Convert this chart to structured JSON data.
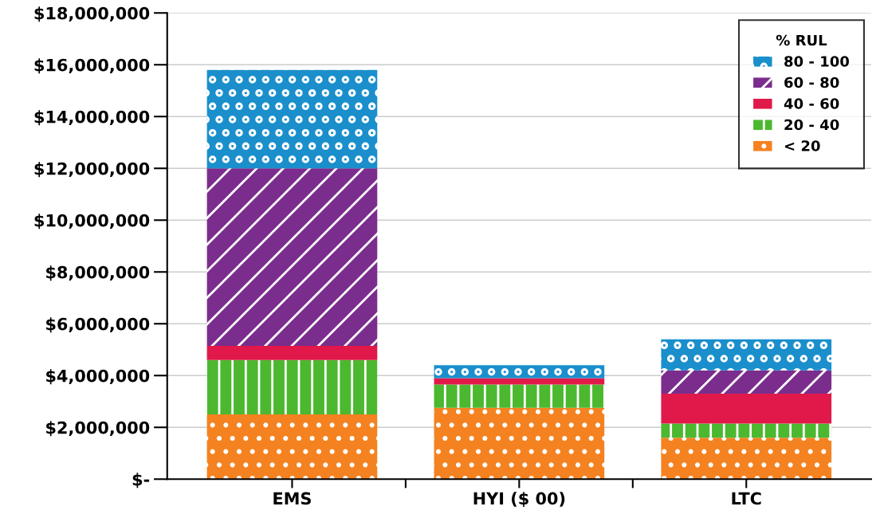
{
  "chart_data": {
    "type": "bar",
    "stacked": true,
    "categories": [
      "EMS",
      "HYI ($ 00)",
      "LTC"
    ],
    "series": [
      {
        "name": "< 20",
        "color": "#f58220",
        "values": [
          2500000,
          2750000,
          1600000
        ]
      },
      {
        "name": "20 - 40",
        "color": "#4cb82f",
        "values": [
          2100000,
          900000,
          550000
        ]
      },
      {
        "name": "40 - 60",
        "color": "#e0194a",
        "values": [
          550000,
          250000,
          1150000
        ]
      },
      {
        "name": "60 - 80",
        "color": "#7b2d8e",
        "values": [
          6850000,
          0,
          900000
        ]
      },
      {
        "name": "80 - 100",
        "color": "#1a8fcc",
        "values": [
          3800000,
          500000,
          1200000
        ]
      }
    ],
    "ylim": [
      0,
      18000000
    ],
    "yticks": [
      {
        "value": 0,
        "label": "$-"
      },
      {
        "value": 2000000,
        "label": "$2,000,000"
      },
      {
        "value": 4000000,
        "label": "$4,000,000"
      },
      {
        "value": 6000000,
        "label": "$6,000,000"
      },
      {
        "value": 8000000,
        "label": "$8,000,000"
      },
      {
        "value": 10000000,
        "label": "$10,000,000"
      },
      {
        "value": 12000000,
        "label": "$12,000,000"
      },
      {
        "value": 14000000,
        "label": "$14,000,000"
      },
      {
        "value": 16000000,
        "label": "$16,000,000"
      },
      {
        "value": 18000000,
        "label": "$18,000,000"
      }
    ],
    "grid": "y",
    "legend": "top right",
    "legend_title": "% RUL"
  }
}
